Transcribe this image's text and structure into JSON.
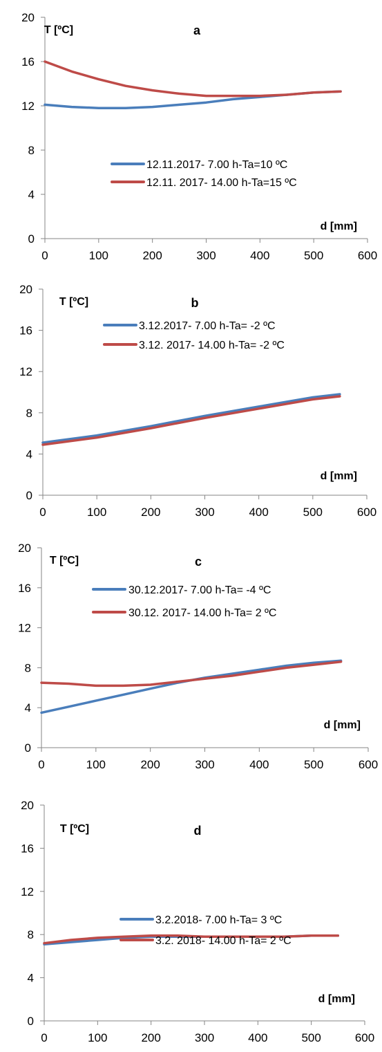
{
  "chart_data": [
    {
      "type": "line",
      "panel_label": "a",
      "ylabel": "T [ºC]",
      "xlabel": "d [mm]",
      "xlim": [
        0,
        600
      ],
      "ylim": [
        0,
        20
      ],
      "xticks": [
        0,
        100,
        200,
        300,
        400,
        500,
        600
      ],
      "yticks": [
        0,
        4,
        8,
        12,
        16,
        20
      ],
      "grid": false,
      "series": [
        {
          "name": "12.11.2017- 7.00 h-Ta=10 ºC",
          "color": "#4a7ebb",
          "x": [
            0,
            50,
            100,
            150,
            200,
            250,
            300,
            350,
            400,
            450,
            500,
            550
          ],
          "y": [
            12.1,
            11.9,
            11.8,
            11.8,
            11.9,
            12.1,
            12.3,
            12.6,
            12.8,
            13.0,
            13.2,
            13.3
          ]
        },
        {
          "name": "12.11. 2017- 14.00 h-Ta=15 ºC",
          "color": "#be4b48",
          "x": [
            0,
            50,
            100,
            150,
            200,
            250,
            300,
            350,
            400,
            450,
            500,
            550
          ],
          "y": [
            16.0,
            15.1,
            14.4,
            13.8,
            13.4,
            13.1,
            12.9,
            12.9,
            12.9,
            13.0,
            13.2,
            13.3
          ]
        }
      ]
    },
    {
      "type": "line",
      "panel_label": "b",
      "ylabel": "T [ºC]",
      "xlabel": "d [mm]",
      "xlim": [
        0,
        600
      ],
      "ylim": [
        0,
        20
      ],
      "xticks": [
        0,
        100,
        200,
        300,
        400,
        500,
        600
      ],
      "yticks": [
        0,
        4,
        8,
        12,
        16,
        20
      ],
      "grid": false,
      "series": [
        {
          "name": "3.12.2017- 7.00 h-Ta= -2 ºC",
          "color": "#4a7ebb",
          "x": [
            0,
            100,
            200,
            300,
            400,
            500,
            550
          ],
          "y": [
            5.1,
            5.8,
            6.7,
            7.7,
            8.6,
            9.5,
            9.8
          ]
        },
        {
          "name": "3.12. 2017- 14.00 h-Ta= -2 ºC",
          "color": "#be4b48",
          "x": [
            0,
            100,
            200,
            300,
            400,
            500,
            550
          ],
          "y": [
            4.9,
            5.6,
            6.5,
            7.5,
            8.4,
            9.3,
            9.6
          ]
        }
      ]
    },
    {
      "type": "line",
      "panel_label": "c",
      "ylabel": "T [ºC]",
      "xlabel": "d [mm]",
      "xlim": [
        0,
        600
      ],
      "ylim": [
        0,
        20
      ],
      "xticks": [
        0,
        100,
        200,
        300,
        400,
        500,
        600
      ],
      "yticks": [
        0,
        4,
        8,
        12,
        16,
        20
      ],
      "grid": false,
      "series": [
        {
          "name": "30.12.2017- 7.00 h-Ta= -4 ºC",
          "color": "#4a7ebb",
          "x": [
            0,
            50,
            100,
            150,
            200,
            250,
            300,
            350,
            400,
            450,
            500,
            550
          ],
          "y": [
            3.5,
            4.1,
            4.7,
            5.3,
            5.9,
            6.5,
            7.0,
            7.4,
            7.8,
            8.2,
            8.5,
            8.7
          ]
        },
        {
          "name": "30.12. 2017- 14.00 h-Ta= 2 ºC",
          "color": "#be4b48",
          "x": [
            0,
            50,
            100,
            150,
            200,
            250,
            300,
            350,
            400,
            450,
            500,
            550
          ],
          "y": [
            6.5,
            6.4,
            6.2,
            6.2,
            6.3,
            6.6,
            6.9,
            7.2,
            7.6,
            8.0,
            8.3,
            8.6
          ]
        }
      ]
    },
    {
      "type": "line",
      "panel_label": "d",
      "ylabel": "T [ºC]",
      "xlabel": "d [mm]",
      "xlim": [
        0,
        600
      ],
      "ylim": [
        0,
        20
      ],
      "xticks": [
        0,
        100,
        200,
        300,
        400,
        500,
        600
      ],
      "yticks": [
        0,
        4,
        8,
        12,
        16,
        20
      ],
      "grid": false,
      "series": [
        {
          "name": "3.2.2018- 7.00 h-Ta=  3 ºC",
          "color": "#4a7ebb",
          "x": [
            0,
            50,
            100,
            150,
            200,
            250,
            300,
            350,
            400,
            450,
            500,
            550
          ],
          "y": [
            7.1,
            7.3,
            7.5,
            7.7,
            7.8,
            7.8,
            7.8,
            7.8,
            7.8,
            7.8,
            7.9,
            7.9
          ]
        },
        {
          "name": "3.2. 2018- 14.00 h-Ta= 2 ºC",
          "color": "#be4b48",
          "x": [
            0,
            50,
            100,
            150,
            200,
            250,
            300,
            350,
            400,
            450,
            500,
            550
          ],
          "y": [
            7.2,
            7.5,
            7.7,
            7.8,
            7.9,
            7.9,
            7.8,
            7.8,
            7.8,
            7.8,
            7.9,
            7.9
          ]
        }
      ]
    }
  ]
}
